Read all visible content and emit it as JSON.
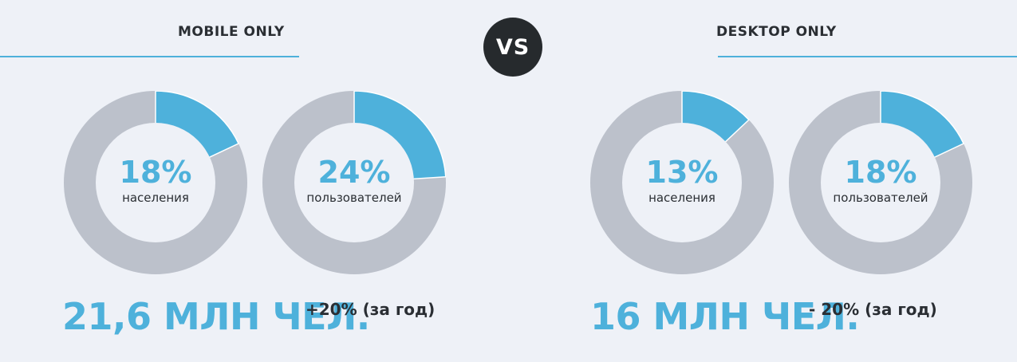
{
  "colors": {
    "accent": "#4eb1db",
    "track": "#bcc1cb",
    "hole": "#eef1f7",
    "badge": "#262a2d",
    "text": "#2a2e33"
  },
  "vs_label": "VS",
  "chart_data": [
    {
      "type": "pie",
      "panel": "MOBILE ONLY",
      "title": "",
      "value": 18,
      "center_text": "18%",
      "label": "населения"
    },
    {
      "type": "pie",
      "panel": "MOBILE ONLY",
      "title": "",
      "value": 24,
      "center_text": "24%",
      "label": "пользователей"
    },
    {
      "type": "pie",
      "panel": "DESKTOP ONLY",
      "title": "",
      "value": 13,
      "center_text": "13%",
      "label": "населения"
    },
    {
      "type": "pie",
      "panel": "DESKTOP ONLY",
      "title": "",
      "value": 18,
      "center_text": "18%",
      "label": "пользователей"
    }
  ],
  "panels": {
    "mobile": {
      "title": "MOBILE ONLY",
      "total": "21,6 МЛН ЧЕЛ.",
      "change": "+20% (за год)"
    },
    "desktop": {
      "title": "DESKTOP ONLY",
      "total": "16 МЛН ЧЕЛ.",
      "change": "- 20% (за год)"
    }
  }
}
